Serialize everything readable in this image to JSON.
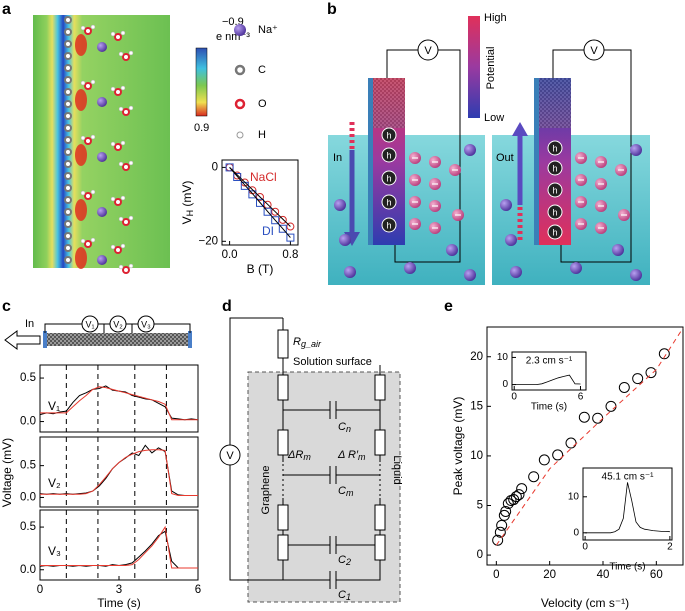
{
  "panels": {
    "a": {
      "letter": "a",
      "colorbar": {
        "top": "−0.9",
        "unit": "e nm⁻³",
        "bottom": "0.9"
      },
      "legend": [
        "Na⁺",
        "C",
        "O",
        "H"
      ]
    },
    "b": {
      "letter": "b",
      "voltmeter": "V",
      "potential": {
        "high": "High",
        "title": "Potential",
        "low": "Low"
      },
      "in": "In",
      "out": "Out",
      "hole": "h"
    },
    "c": {
      "letter": "c",
      "in": "In"
    },
    "d": {
      "letter": "d",
      "voltmeter": "V",
      "r_air": {
        "symbol": "R",
        "sub": "g_air"
      },
      "surface": "Solution surface",
      "graphene": "Graphene",
      "liquid": "Liquid",
      "c_n": {
        "symbol": "C",
        "sub": "n"
      },
      "dr_m": {
        "symbol": "ΔR",
        "sub": "m"
      },
      "dr_m_prime": {
        "symbol": "Δ R′",
        "sub": "m"
      },
      "c_m": {
        "symbol": "C",
        "sub": "m"
      },
      "c_2": {
        "symbol": "C",
        "sub": "2"
      },
      "c_1": {
        "symbol": "C",
        "sub": "1"
      }
    },
    "e": {
      "letter": "e"
    }
  },
  "chart_data": [
    {
      "type": "line",
      "xlabel": "B (T)",
      "ylabel": [
        "V",
        "H",
        " (mV)"
      ],
      "x": [
        0,
        0.1,
        0.2,
        0.3,
        0.4,
        0.5,
        0.6,
        0.7,
        0.8
      ],
      "xlim": [
        -0.1,
        0.9
      ],
      "ylim": [
        -21,
        2
      ],
      "xticks": [
        {
          "value": 0,
          "label": "0.0"
        },
        0.8
      ],
      "yticks": [
        0,
        {
          "value": -20,
          "label": "−20"
        }
      ],
      "series": [
        {
          "name": "NaCl",
          "color": "#d42a2a",
          "marker": "circle",
          "values": [
            0,
            -2.2,
            -4.1,
            -6.2,
            -8,
            -10.1,
            -12,
            -14.2,
            -16
          ]
        },
        {
          "name": "DI",
          "color": "#2a4fc0",
          "marker": "square",
          "values": [
            0,
            -2.6,
            -5,
            -7.3,
            -9.6,
            -12,
            -14.3,
            -16.6,
            -19
          ]
        },
        {
          "color": "#000000",
          "values": [
            0,
            -2,
            -4,
            -6,
            -8,
            -10,
            -12,
            -14,
            -16
          ]
        },
        {
          "color": "#000000",
          "values": [
            0,
            -2.4,
            -4.8,
            -7.1,
            -9.5,
            -11.9,
            -14.3,
            -16.6,
            -19
          ]
        }
      ]
    },
    {
      "type": "line",
      "x": [
        0,
        0.25,
        0.5,
        0.75,
        1,
        1.25,
        1.5,
        1.75,
        2,
        2.25,
        2.5,
        2.75,
        3,
        3.25,
        3.5,
        3.75,
        4,
        4.25,
        4.5,
        4.75,
        5,
        5.25,
        5.5,
        5.75,
        6
      ],
      "xlim": [
        0,
        6
      ],
      "ylim": [
        -0.12,
        0.65
      ],
      "yticks": [
        {
          "value": 0,
          "label": "0.0"
        },
        0.5
      ],
      "vlines": [
        1,
        2.2,
        3.6,
        4.8
      ],
      "series": [
        {
          "name": "V₁",
          "color": "#000000",
          "values": [
            0.08,
            0.1,
            0.09,
            0.11,
            0.12,
            0.22,
            0.3,
            0.33,
            0.37,
            0.38,
            0.41,
            0.36,
            0.35,
            0.34,
            0.3,
            0.28,
            0.26,
            0.25,
            0.21,
            0.17,
            0.04,
            0.03,
            0.02,
            0.03,
            0.02
          ]
        },
        {
          "color": "#e8392e",
          "values": [
            0.1,
            0.1,
            0.1,
            0.1,
            0.1,
            0.17,
            0.24,
            0.3,
            0.37,
            0.4,
            0.39,
            0.37,
            0.35,
            0.33,
            0.31,
            0.29,
            0.27,
            0.25,
            0.23,
            0.2,
            0.02,
            0.02,
            0.02,
            0.02,
            0.02
          ]
        }
      ]
    },
    {
      "type": "line",
      "ylabel": "Voltage (mV)",
      "x": [
        0,
        0.25,
        0.5,
        0.75,
        1,
        1.25,
        1.5,
        1.75,
        2,
        2.25,
        2.5,
        2.75,
        3,
        3.25,
        3.5,
        3.75,
        4,
        4.25,
        4.5,
        4.75,
        5,
        5.25,
        5.5,
        5.75,
        6
      ],
      "xlim": [
        0,
        6
      ],
      "ylim": [
        -0.15,
        0.95
      ],
      "yticks": [
        {
          "value": 0,
          "label": "0.0"
        },
        0.5
      ],
      "vlines": [
        1,
        2.2,
        3.6,
        4.8
      ],
      "series": [
        {
          "name": "V₂",
          "color": "#000000",
          "values": [
            0.06,
            0.05,
            0.06,
            0.05,
            0.06,
            0.05,
            0.06,
            0.07,
            0.1,
            0.18,
            0.3,
            0.45,
            0.55,
            0.62,
            0.7,
            0.66,
            0.82,
            0.7,
            0.78,
            0.72,
            0.1,
            0.04,
            0.03,
            0.03,
            0.03
          ]
        },
        {
          "color": "#e8392e",
          "values": [
            0.05,
            0.05,
            0.05,
            0.05,
            0.05,
            0.05,
            0.05,
            0.06,
            0.1,
            0.2,
            0.32,
            0.45,
            0.55,
            0.63,
            0.68,
            0.72,
            0.74,
            0.75,
            0.75,
            0.74,
            0.06,
            0.03,
            0.03,
            0.03,
            0.03
          ]
        }
      ]
    },
    {
      "type": "line",
      "xlabel": "Time (s)",
      "x": [
        0,
        0.25,
        0.5,
        0.75,
        1,
        1.25,
        1.5,
        1.75,
        2,
        2.25,
        2.5,
        2.75,
        3,
        3.25,
        3.5,
        3.75,
        4,
        4.25,
        4.5,
        4.75,
        5,
        5.25,
        5.5,
        5.75,
        6
      ],
      "xlim": [
        0,
        6
      ],
      "ylim": [
        -0.12,
        0.7
      ],
      "xticks": [
        0,
        3,
        6
      ],
      "yticks": [
        {
          "value": 0,
          "label": "0.0"
        },
        0.5
      ],
      "vlines": [
        1,
        2.2,
        3.6,
        4.8
      ],
      "series": [
        {
          "name": "V₃",
          "color": "#000000",
          "values": [
            0.04,
            0.05,
            0.04,
            0.05,
            0.05,
            0.04,
            0.05,
            0.04,
            0.05,
            0.05,
            0.04,
            0.06,
            0.05,
            0.06,
            0.08,
            0.15,
            0.22,
            0.3,
            0.4,
            0.45,
            0.1,
            0.02,
            0.02,
            0.02,
            0.02
          ]
        },
        {
          "color": "#e8392e",
          "values": [
            0.05,
            0.05,
            0.05,
            0.05,
            0.05,
            0.05,
            0.05,
            0.05,
            0.05,
            0.05,
            0.05,
            0.05,
            0.05,
            0.05,
            0.06,
            0.12,
            0.2,
            0.28,
            0.38,
            0.5,
            0.02,
            0.02,
            0.02,
            0.02,
            0.02
          ]
        }
      ]
    },
    {
      "type": "scatter",
      "xlabel": "Velocity (cm s⁻¹)",
      "ylabel": "Peak voltage (mV)",
      "xlim": [
        -3.5,
        70
      ],
      "ylim": [
        -1,
        23
      ],
      "xticks": [
        0,
        20,
        40,
        60
      ],
      "yticks": [
        0,
        5,
        10,
        15,
        20
      ],
      "series": [
        {
          "color": "#000000",
          "marker": "circle",
          "x": [
            0.5,
            1.5,
            2,
            3,
            3.5,
            4.5,
            5.5,
            6.5,
            7.5,
            8.5,
            9.5,
            14,
            18,
            23,
            28,
            33,
            38,
            43,
            48,
            53,
            58,
            63
          ],
          "values": [
            1.5,
            2.3,
            3,
            4,
            4.4,
            5.2,
            5.5,
            5.6,
            5.9,
            6.1,
            6.7,
            7.9,
            9.6,
            10.1,
            11.3,
            13.9,
            13.8,
            15,
            16.9,
            17.8,
            18.4,
            20.3
          ]
        },
        {
          "color": "#e8392e",
          "dash": true,
          "x": [
            0,
            20,
            40,
            60,
            70
          ],
          "values": [
            1,
            8.7,
            13.8,
            18.7,
            22.9
          ]
        }
      ]
    },
    {
      "type": "line",
      "title": "2.3 cm s⁻¹",
      "xlabel": "Time (s)",
      "x": [
        0,
        0.5,
        1,
        1.5,
        2,
        2.5,
        3,
        3.5,
        4,
        4.5,
        5,
        5.5,
        6
      ],
      "xlim": [
        -0.2,
        6.5
      ],
      "ylim": [
        -2,
        12
      ],
      "xticks": [
        0,
        6
      ],
      "yticks": [
        0,
        10
      ],
      "series": [
        {
          "color": "#000000",
          "values": [
            0,
            0,
            0,
            0,
            0,
            0.3,
            1,
            1.8,
            2.5,
            3,
            3.5,
            0.3,
            0.2
          ]
        }
      ]
    },
    {
      "type": "line",
      "title": "45.1 cm s⁻¹",
      "xlabel": "Time (s)",
      "x": [
        0,
        0.1,
        0.2,
        0.3,
        0.4,
        0.5,
        0.6,
        0.7,
        0.8,
        0.9,
        1,
        1.1,
        1.2,
        1.3,
        1.4,
        1.5,
        1.6,
        1.7,
        1.8,
        1.9,
        2
      ],
      "xlim": [
        -0.05,
        2.05
      ],
      "ylim": [
        -2,
        18
      ],
      "xticks": [
        0,
        2
      ],
      "yticks": [
        0,
        10
      ],
      "series": [
        {
          "color": "#000000",
          "values": [
            0,
            0,
            0,
            0,
            0,
            0,
            0,
            0.3,
            1,
            4,
            14,
            9,
            3,
            1.5,
            1,
            0.8,
            0.6,
            0.5,
            0.4,
            0.4,
            0.3
          ]
        }
      ]
    }
  ]
}
